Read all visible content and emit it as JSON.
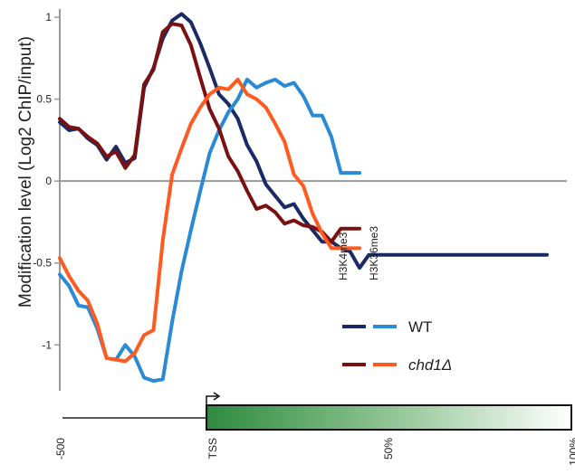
{
  "chart_data": {
    "type": "line",
    "ylabel": "Modification level (Log2 ChIP/input)",
    "xlabel": "",
    "ylim": [
      -1.28,
      1.05
    ],
    "yticks": [
      {
        "value": 1,
        "label": "1"
      },
      {
        "value": 0.5,
        "label": "0.5"
      },
      {
        "value": 0,
        "label": "0"
      },
      {
        "value": -0.5,
        "label": "-0.5"
      },
      {
        "value": -1,
        "label": "-1"
      }
    ],
    "xlim": [
      -500,
      1700
    ],
    "xticks": [
      {
        "value": -500,
        "label": "-500"
      },
      {
        "value": 150,
        "label": "TSS"
      },
      {
        "value": 900,
        "label": "50%"
      },
      {
        "value": 1690,
        "label": "100%"
      }
    ],
    "gene_diagram": {
      "start": 150,
      "end": 1705
    },
    "legend": {
      "column_labels": [
        "H3K4me3",
        "H3K36me3"
      ],
      "rows": [
        {
          "label": "WT",
          "italic": false,
          "colors": [
            "#1a2a66",
            "#2a8ad6"
          ]
        },
        {
          "label": "chd1Δ",
          "italic": true,
          "colors": [
            "#7a1010",
            "#ff5a1f"
          ]
        }
      ]
    },
    "series": [
      {
        "name": "WT H3K4me3",
        "color": "#1a2a66",
        "x": [
          -500,
          -460,
          -420,
          -380,
          -340,
          -300,
          -260,
          -220,
          -180,
          -140,
          -100,
          -60,
          -20,
          20,
          60,
          100,
          140,
          180,
          220,
          260,
          300,
          340,
          380,
          420,
          460,
          500,
          540,
          580,
          620,
          660,
          700,
          740,
          780,
          820,
          860,
          900,
          940,
          980,
          1020,
          1060,
          1100,
          1140,
          1180,
          1220,
          1260,
          1300,
          1340,
          1380,
          1420,
          1460,
          1500,
          1540,
          1580
        ],
        "values": [
          0.36,
          0.31,
          0.32,
          0.26,
          0.22,
          0.13,
          0.21,
          0.11,
          0.14,
          0.57,
          0.69,
          0.87,
          0.98,
          1.02,
          0.97,
          0.84,
          0.69,
          0.53,
          0.47,
          0.38,
          0.22,
          0.12,
          -0.02,
          -0.09,
          -0.16,
          -0.14,
          -0.23,
          -0.3,
          -0.37,
          -0.37,
          -0.41,
          -0.43,
          -0.53,
          -0.45,
          -0.45,
          -0.45,
          -0.45,
          -0.45,
          -0.45,
          -0.45,
          -0.45,
          -0.45,
          -0.45,
          -0.45,
          -0.45,
          -0.45,
          -0.45,
          -0.45,
          -0.45,
          -0.45,
          -0.45,
          -0.45,
          -0.45
        ]
      },
      {
        "name": "WT H3K36me3",
        "color": "#2a8ad6",
        "x": [
          -500,
          -460,
          -420,
          -380,
          -340,
          -300,
          -260,
          -220,
          -180,
          -140,
          -100,
          -60,
          -20,
          20,
          60,
          100,
          140,
          180,
          220,
          260,
          300,
          340,
          380,
          420,
          460,
          500,
          540,
          580,
          620,
          660,
          700,
          740,
          780
        ],
        "values": [
          -0.57,
          -0.64,
          -0.76,
          -0.77,
          -0.9,
          -1.08,
          -1.09,
          -1.0,
          -1.07,
          -1.2,
          -1.22,
          -1.21,
          -0.86,
          -0.55,
          -0.3,
          -0.06,
          0.17,
          0.31,
          0.42,
          0.5,
          0.62,
          0.57,
          0.6,
          0.62,
          0.58,
          0.6,
          0.52,
          0.4,
          0.4,
          0.27,
          0.05,
          0.05,
          0.05
        ]
      },
      {
        "name": "chd1Δ H3K4me3",
        "color": "#7a1010",
        "x": [
          -500,
          -460,
          -420,
          -380,
          -340,
          -300,
          -260,
          -220,
          -180,
          -140,
          -100,
          -60,
          -20,
          20,
          60,
          100,
          140,
          180,
          220,
          260,
          300,
          340,
          380,
          420,
          460,
          500,
          540,
          580,
          620,
          660,
          700,
          740,
          780
        ],
        "values": [
          0.38,
          0.33,
          0.32,
          0.27,
          0.23,
          0.15,
          0.18,
          0.08,
          0.16,
          0.59,
          0.68,
          0.91,
          0.96,
          0.95,
          0.83,
          0.63,
          0.44,
          0.32,
          0.15,
          0.06,
          -0.06,
          -0.17,
          -0.15,
          -0.19,
          -0.26,
          -0.24,
          -0.27,
          -0.28,
          -0.31,
          -0.37,
          -0.29,
          -0.29,
          -0.29
        ]
      },
      {
        "name": "chd1Δ H3K36me3",
        "color": "#ff5a1f",
        "x": [
          -500,
          -460,
          -420,
          -380,
          -340,
          -300,
          -260,
          -220,
          -180,
          -140,
          -100,
          -60,
          -20,
          20,
          60,
          100,
          140,
          180,
          220,
          260,
          300,
          340,
          380,
          420,
          460,
          500,
          540,
          580,
          620,
          660,
          700,
          740,
          780
        ],
        "values": [
          -0.47,
          -0.58,
          -0.67,
          -0.73,
          -0.87,
          -1.08,
          -1.09,
          -1.1,
          -1.05,
          -0.94,
          -0.91,
          -0.36,
          0.04,
          0.2,
          0.35,
          0.45,
          0.53,
          0.57,
          0.56,
          0.62,
          0.53,
          0.5,
          0.45,
          0.35,
          0.24,
          0.04,
          -0.03,
          -0.2,
          -0.32,
          -0.41,
          -0.41,
          -0.41,
          -0.41
        ]
      }
    ]
  }
}
